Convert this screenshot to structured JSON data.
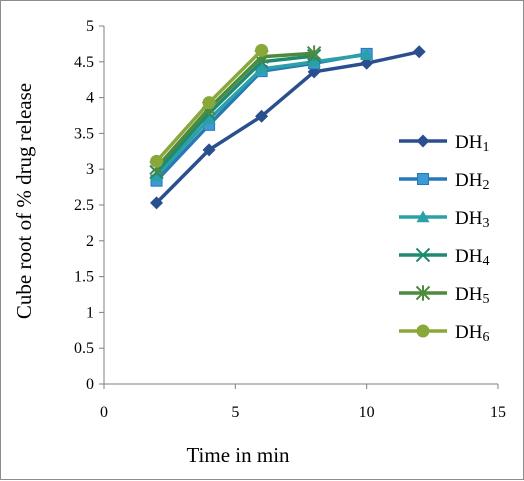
{
  "chart_data": {
    "type": "line",
    "xlabel": "Time in min",
    "ylabel": "Cube root of %  drug release",
    "xlim": [
      0,
      15
    ],
    "ylim": [
      0,
      5
    ],
    "x_ticks": [
      "0",
      "5",
      "10",
      "15"
    ],
    "y_ticks": [
      "0",
      "0.5",
      "1",
      "1.5",
      "2",
      "2.5",
      "3",
      "3.5",
      "4",
      "4.5",
      "5"
    ],
    "legend_position": "right",
    "grid": false,
    "series": [
      {
        "name": "DH",
        "subscript": "1",
        "color": "#2a4f8f",
        "marker": "diamond",
        "x": [
          2,
          4,
          6,
          8,
          10,
          12
        ],
        "y": [
          2.53,
          3.27,
          3.74,
          4.36,
          4.48,
          4.64
        ]
      },
      {
        "name": "DH",
        "subscript": "2",
        "color": "#2878b5",
        "marker": "square",
        "x": [
          2,
          4,
          6,
          8,
          10
        ],
        "y": [
          2.84,
          3.62,
          4.37,
          4.48,
          4.61
        ]
      },
      {
        "name": "DH",
        "subscript": "3",
        "color": "#2aa1a8",
        "marker": "triangle",
        "x": [
          2,
          4,
          6,
          8,
          10
        ],
        "y": [
          2.9,
          3.7,
          4.4,
          4.5,
          4.6
        ]
      },
      {
        "name": "DH",
        "subscript": "4",
        "color": "#1f8a70",
        "marker": "x",
        "x": [
          2,
          4,
          6,
          8
        ],
        "y": [
          2.96,
          3.78,
          4.5,
          4.58
        ]
      },
      {
        "name": "DH",
        "subscript": "5",
        "color": "#4e8a3e",
        "marker": "star",
        "x": [
          2,
          4,
          6,
          8
        ],
        "y": [
          3.02,
          3.85,
          4.57,
          4.62
        ]
      },
      {
        "name": "DH",
        "subscript": "6",
        "color": "#8aa83a",
        "marker": "circle",
        "x": [
          2,
          4,
          6
        ],
        "y": [
          3.11,
          3.93,
          4.66
        ]
      }
    ]
  }
}
